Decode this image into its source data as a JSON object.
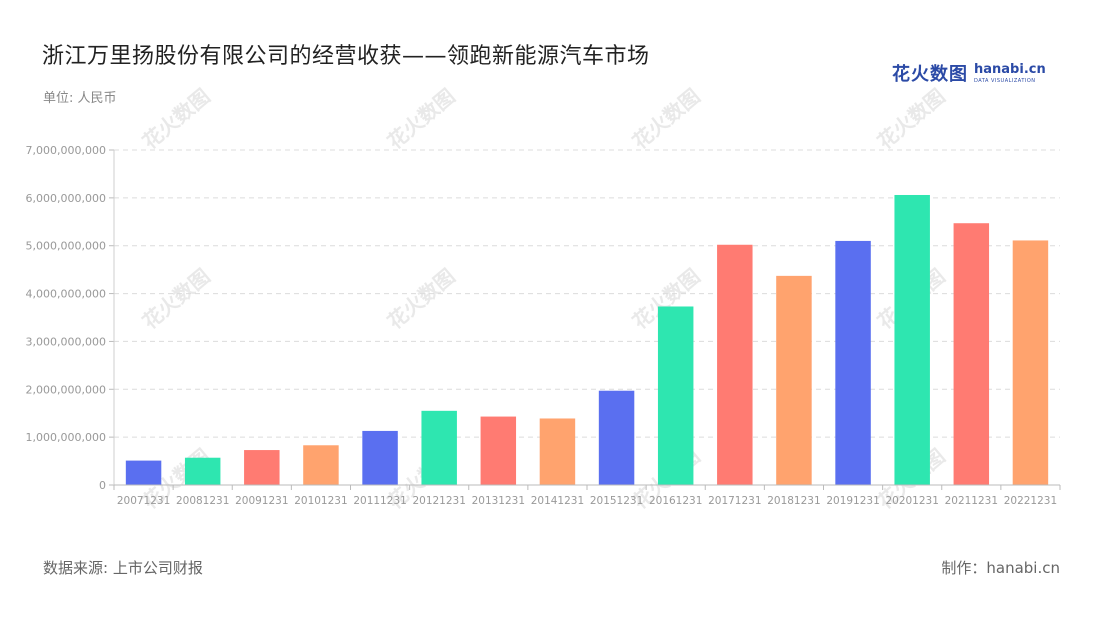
{
  "header": {
    "title": "浙江万里扬股份有限公司的经营收获——领跑新能源汽车市场",
    "unit": "单位: 人民币"
  },
  "logo": {
    "cn": "花火数图",
    "en": "hanabi.cn",
    "sub": "DATA VISUALIZATION"
  },
  "footer": {
    "source": "数据来源: 上市公司财报",
    "credit": "制作：hanabi.cn"
  },
  "palette": [
    "#5a6ff0",
    "#2ee6b0",
    "#ff7b72",
    "#ffa36e"
  ],
  "chart_data": {
    "type": "bar",
    "categories": [
      "20071231",
      "20081231",
      "20091231",
      "20101231",
      "20111231",
      "20121231",
      "20131231",
      "20141231",
      "20151231",
      "20161231",
      "20171231",
      "20181231",
      "20191231",
      "20201231",
      "20211231",
      "20221231"
    ],
    "values": [
      510000000,
      570000000,
      730000000,
      830000000,
      1130000000,
      1550000000,
      1430000000,
      1390000000,
      1970000000,
      3730000000,
      5020000000,
      4370000000,
      5100000000,
      6060000000,
      5470000000,
      5110000000
    ],
    "ylim": [
      0,
      7000000000
    ],
    "yticks": [
      0,
      1000000000,
      2000000000,
      3000000000,
      4000000000,
      5000000000,
      6000000000,
      7000000000
    ],
    "ytick_labels": [
      "0",
      "1,000,000,000",
      "2,000,000,000",
      "3,000,000,000",
      "4,000,000,000",
      "5,000,000,000",
      "6,000,000,000",
      "7,000,000,000"
    ],
    "grid": true,
    "legend": "none"
  }
}
